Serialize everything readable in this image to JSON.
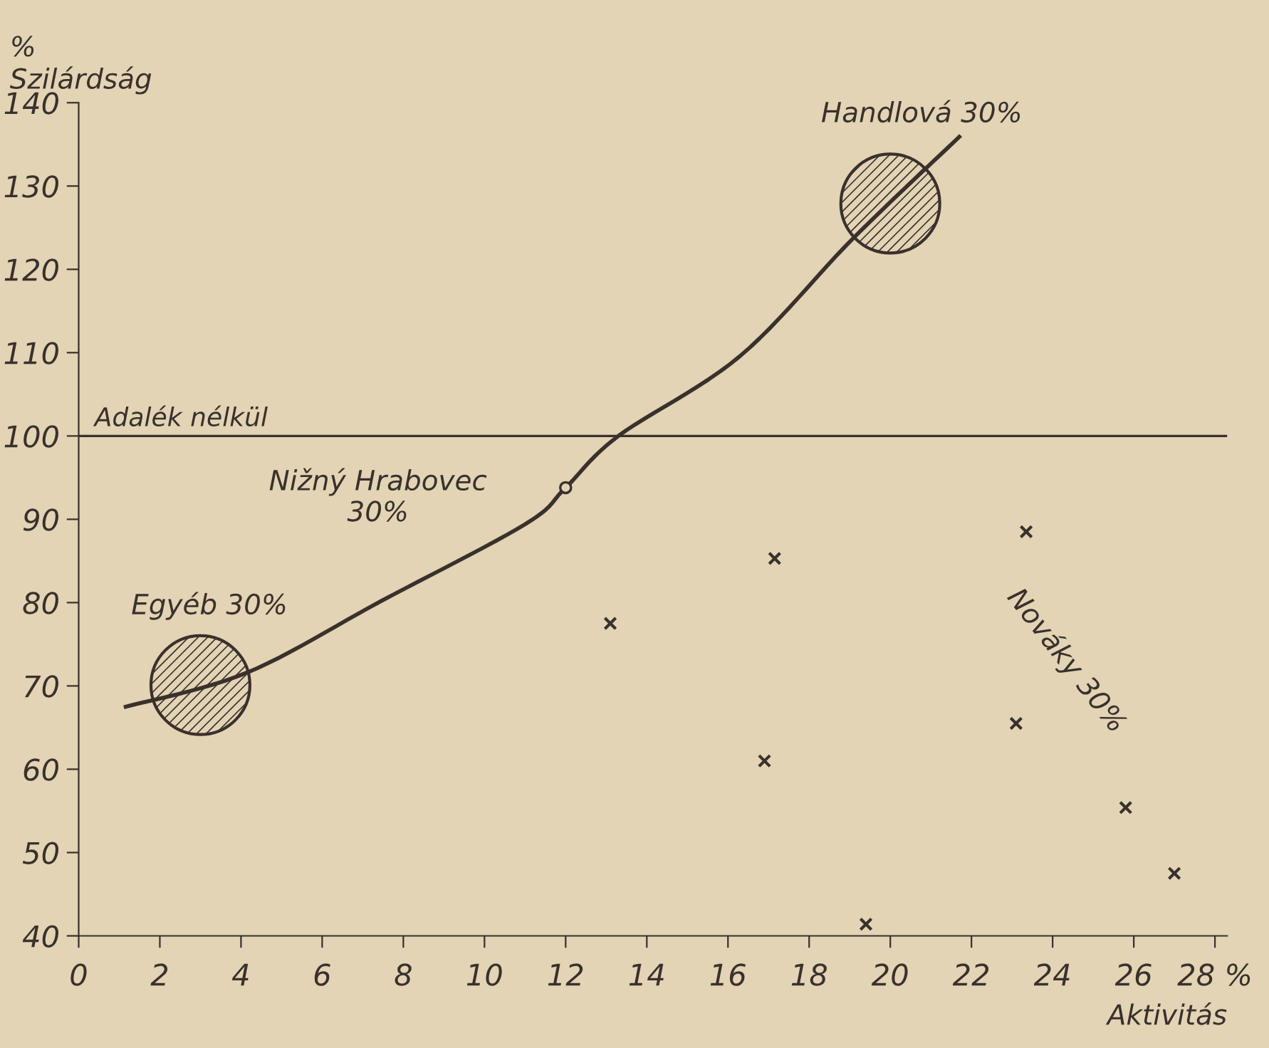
{
  "chart_data": {
    "type": "scatter",
    "xlabel": "Aktivitás",
    "ylabel": "%\nSzilárdság",
    "xlim": [
      0,
      28.3
    ],
    "ylim": [
      40,
      140
    ],
    "xticks": [
      0,
      2,
      4,
      6,
      8,
      10,
      12,
      14,
      16,
      18,
      20,
      22,
      24,
      26,
      {
        "value": 28,
        "label": "28 %"
      }
    ],
    "yticks": [
      40,
      50,
      60,
      70,
      80,
      90,
      100,
      110,
      120,
      130,
      140
    ],
    "grid": false,
    "legend": false,
    "series": [
      {
        "type": "line",
        "color": "#3a302c",
        "line_style": "solid",
        "marker": "none",
        "x": [
          1.16,
          4.15,
          7.46,
          11.0,
          12.0,
          13.3,
          16.3,
          19.1,
          21.7
        ],
        "values": [
          67.5,
          71.6,
          80.2,
          89.4,
          93.8,
          100,
          109.6,
          123.8,
          135.9
        ]
      },
      {
        "type": "bubble",
        "color": "#3a302c",
        "x": [
          3.0,
          20.0
        ],
        "values": [
          70.1,
          127.9
        ],
        "sizes": [
          1,
          1
        ]
      },
      {
        "color": "#3a302c",
        "marker": "circle",
        "x": [
          12.0
        ],
        "values": [
          93.8
        ]
      },
      {
        "color": "#3a302c",
        "marker": "cross",
        "x": [
          13.1,
          16.9,
          17.15,
          19.4,
          23.1,
          23.35,
          25.8,
          27.0
        ],
        "values": [
          77.5,
          61.0,
          85.3,
          41.4,
          65.5,
          88.5,
          55.4,
          47.5
        ]
      }
    ],
    "ref_lines": [
      {
        "axis": "y",
        "value": 100,
        "label": "Adalék nélkül",
        "color": "#3a302c",
        "line_style": "solid"
      }
    ],
    "annotations": [
      {
        "text": "Handlová 30%",
        "x": 20.0,
        "y": 127.9
      },
      {
        "text": "Egyéb 30%",
        "x": 3.0,
        "y": 70.1
      },
      {
        "text": "Nižný Hrabovec\n30%",
        "x": 12.0,
        "y": 93.8
      },
      "Nováky 30%"
    ]
  }
}
